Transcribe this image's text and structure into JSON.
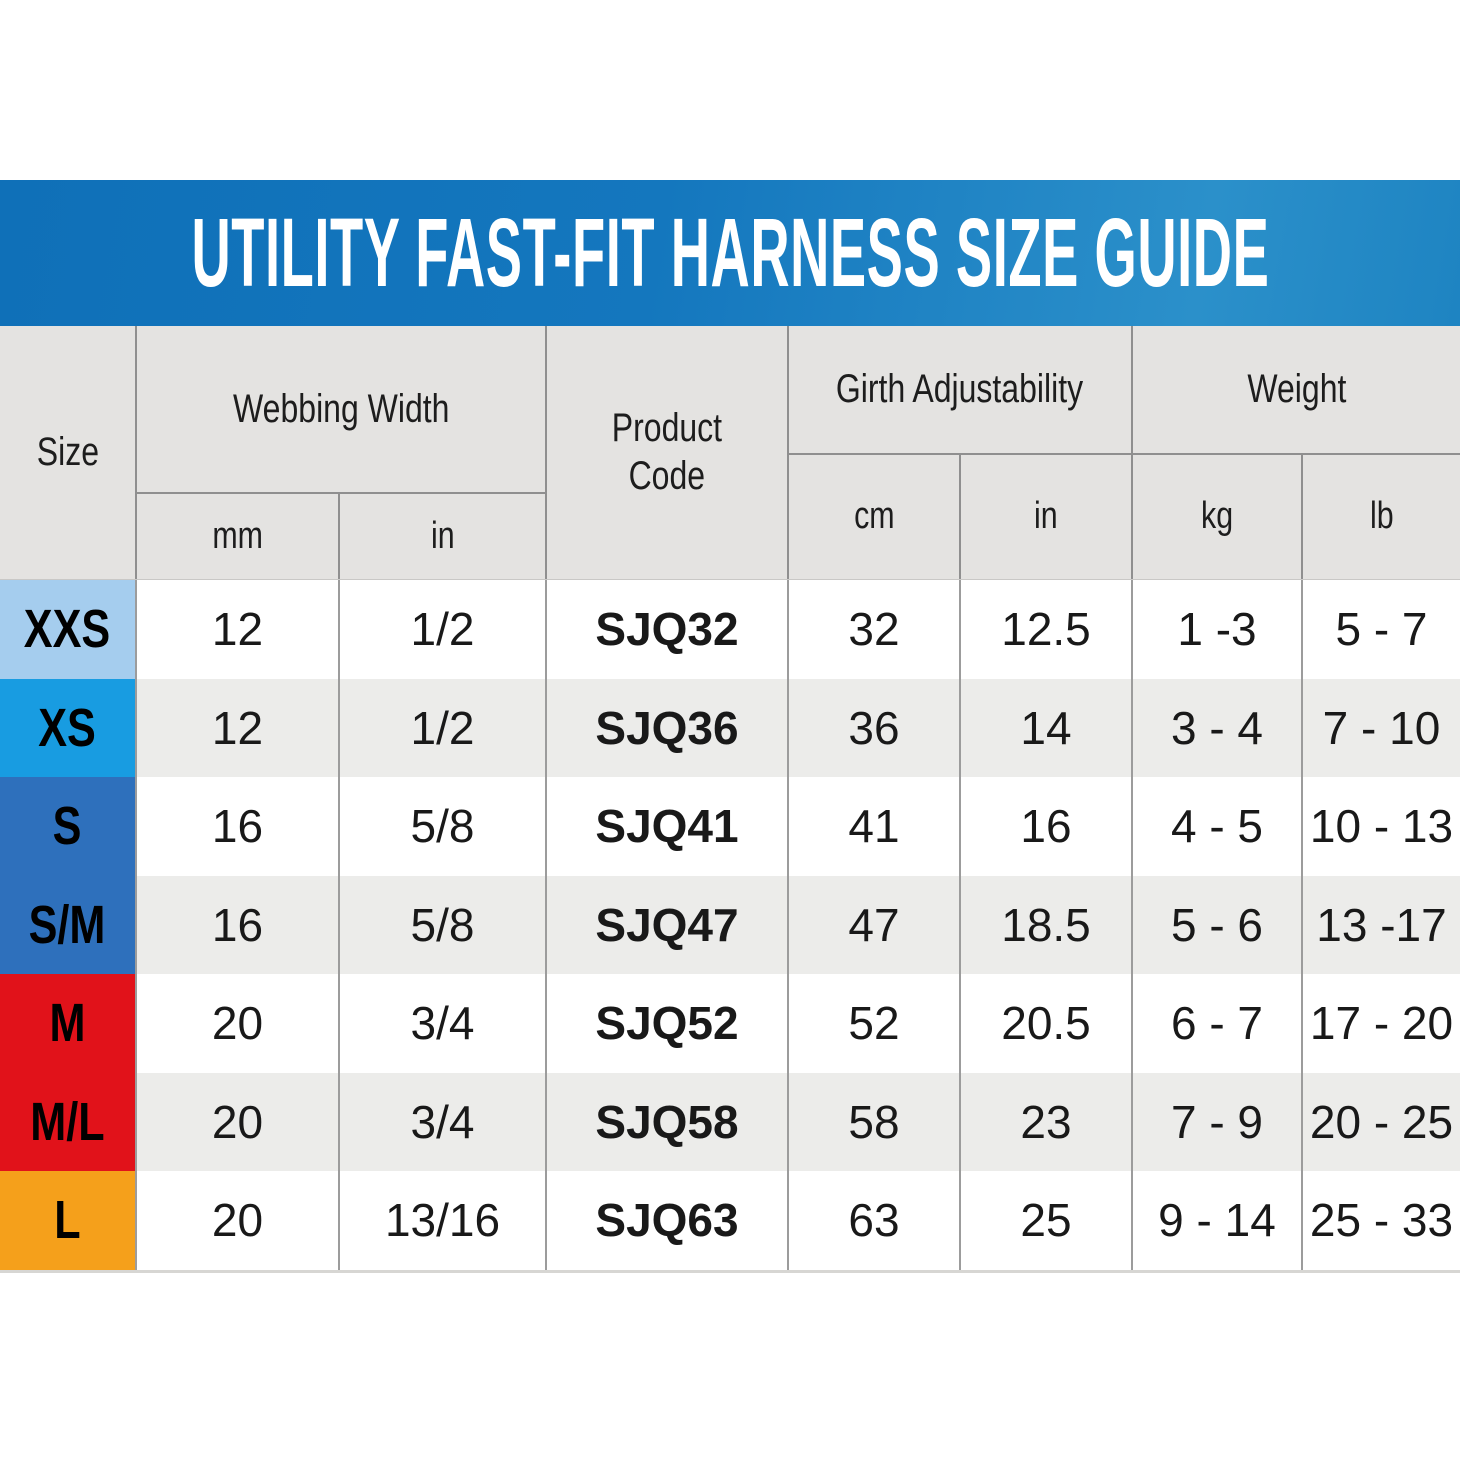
{
  "title": "UTILITY FAST-FIT HARNESS SIZE GUIDE",
  "colors": {
    "banner_blue_left": "#0F70B8",
    "banner_blue_right": "#1E84C2",
    "header_gray": "#E4E3E1",
    "row_alt_gray": "#ECECEA",
    "size_xxs_blue": "#A5CDEE",
    "size_xs_blue": "#189CE1",
    "size_s_blue": "#2E70BC",
    "size_m_red": "#E1121A",
    "size_l_orange": "#F5A01B"
  },
  "header": {
    "size": "Size",
    "webbing": "Webbing Width",
    "product_line1": "Product",
    "product_line2": "Code",
    "girth": "Girth Adjustability",
    "weight": "Weight",
    "units": {
      "mm": "mm",
      "webbing_in": "in",
      "cm": "cm",
      "girth_in": "in",
      "kg": "kg",
      "lb": "lb"
    }
  },
  "rows": [
    {
      "size": "XXS",
      "color": "#A5CDEE",
      "mm": "12",
      "in": "1/2",
      "code": "SJQ32",
      "girth_cm": "32",
      "girth_in": "12.5",
      "kg": "1 -3",
      "lb": "5 - 7"
    },
    {
      "size": "XS",
      "color": "#189CE1",
      "mm": "12",
      "in": "1/2",
      "code": "SJQ36",
      "girth_cm": "36",
      "girth_in": "14",
      "kg": "3 - 4",
      "lb": "7 - 10"
    },
    {
      "size": "S",
      "color": "#2E70BC",
      "mm": "16",
      "in": "5/8",
      "code": "SJQ41",
      "girth_cm": "41",
      "girth_in": "16",
      "kg": "4 - 5",
      "lb": "10 - 13"
    },
    {
      "size": "S/M",
      "color": "#2E70BC",
      "mm": "16",
      "in": "5/8",
      "code": "SJQ47",
      "girth_cm": "47",
      "girth_in": "18.5",
      "kg": "5 - 6",
      "lb": "13 -17"
    },
    {
      "size": "M",
      "color": "#E1121A",
      "mm": "20",
      "in": "3/4",
      "code": "SJQ52",
      "girth_cm": "52",
      "girth_in": "20.5",
      "kg": "6 - 7",
      "lb": "17 - 20"
    },
    {
      "size": "M/L",
      "color": "#E1121A",
      "mm": "20",
      "in": "3/4",
      "code": "SJQ58",
      "girth_cm": "58",
      "girth_in": "23",
      "kg": "7 - 9",
      "lb": "20 - 25"
    },
    {
      "size": "L",
      "color": "#F5A01B",
      "mm": "20",
      "in": "13/16",
      "code": "SJQ63",
      "girth_cm": "63",
      "girth_in": "25",
      "kg": "9 - 14",
      "lb": "25 - 33"
    }
  ]
}
